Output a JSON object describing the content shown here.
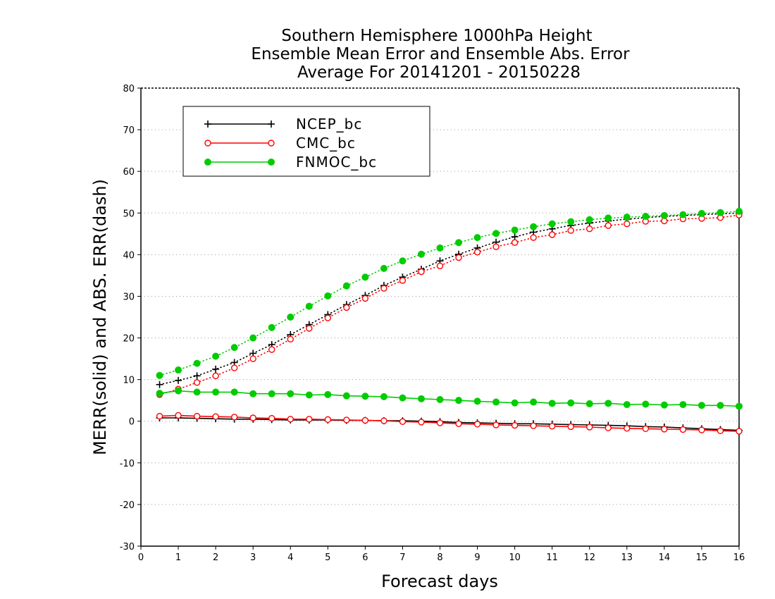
{
  "chart_data": {
    "type": "line",
    "title_lines": [
      "Southern Hemisphere 1000hPa Height",
      "Ensemble Mean Error and Ensemble Abs. Error",
      "Average For 20141201 - 20150228"
    ],
    "xlabel": "Forecast days",
    "ylabel": "MERR(solid) and ABS. ERR(dash)",
    "xlim": [
      0,
      16
    ],
    "ylim": [
      -30,
      80
    ],
    "x_ticks": [
      "0",
      "1",
      "2",
      "3",
      "4",
      "5",
      "6",
      "7",
      "8",
      "9",
      "10",
      "11",
      "12",
      "13",
      "14",
      "15",
      "16"
    ],
    "y_ticks": [
      "80",
      "70",
      "60",
      "50",
      "40",
      "30",
      "20",
      "10",
      "0",
      "-10",
      "-20",
      "-30"
    ],
    "grid": true,
    "legend_position": "top-left",
    "x": [
      0.5,
      1,
      1.5,
      2,
      2.5,
      3,
      3.5,
      4,
      4.5,
      5,
      5.5,
      6,
      6.5,
      7,
      7.5,
      8,
      8.5,
      9,
      9.5,
      10,
      10.5,
      11,
      11.5,
      12,
      12.5,
      13,
      13.5,
      14,
      14.5,
      15,
      15.5,
      16
    ],
    "series": [
      {
        "name": "NCEP_bc",
        "color": "#000000",
        "marker": "plus",
        "merr": [
          0.8,
          0.8,
          0.7,
          0.6,
          0.5,
          0.5,
          0.4,
          0.3,
          0.3,
          0.3,
          0.2,
          0.2,
          0.1,
          0.1,
          0.0,
          -0.1,
          -0.3,
          -0.4,
          -0.5,
          -0.6,
          -0.6,
          -0.7,
          -0.8,
          -0.9,
          -1.0,
          -1.1,
          -1.3,
          -1.4,
          -1.6,
          -1.8,
          -2.0,
          -2.2
        ],
        "abs_err": [
          8.8,
          9.8,
          10.9,
          12.5,
          14.1,
          16.3,
          18.4,
          20.8,
          23.2,
          25.6,
          28.0,
          30.2,
          32.6,
          34.6,
          36.5,
          38.5,
          40.1,
          41.6,
          43.0,
          44.3,
          45.4,
          46.2,
          47.0,
          47.6,
          48.1,
          48.5,
          48.9,
          49.2,
          49.4,
          49.6,
          49.8,
          50.0
        ]
      },
      {
        "name": "CMC_bc",
        "color": "#ff0000",
        "marker": "open-circle",
        "merr": [
          1.2,
          1.4,
          1.2,
          1.1,
          1.0,
          0.8,
          0.7,
          0.5,
          0.5,
          0.4,
          0.3,
          0.2,
          0.1,
          -0.1,
          -0.2,
          -0.4,
          -0.6,
          -0.7,
          -0.9,
          -1.0,
          -1.1,
          -1.2,
          -1.3,
          -1.4,
          -1.6,
          -1.7,
          -1.8,
          -1.9,
          -2.0,
          -2.1,
          -2.3,
          -2.4
        ],
        "abs_err": [
          6.4,
          7.7,
          9.3,
          10.9,
          12.8,
          15.0,
          17.2,
          19.7,
          22.3,
          24.8,
          27.3,
          29.5,
          31.9,
          33.8,
          35.9,
          37.3,
          39.3,
          40.6,
          41.9,
          42.9,
          44.1,
          44.8,
          45.8,
          46.2,
          47.0,
          47.4,
          48.0,
          48.1,
          48.6,
          48.7,
          48.9,
          49.5
        ]
      },
      {
        "name": "FNMOC_bc",
        "color": "#00cc00",
        "marker": "filled-circle",
        "merr": [
          6.7,
          7.3,
          7.0,
          7.0,
          7.0,
          6.6,
          6.6,
          6.6,
          6.3,
          6.4,
          6.1,
          6.0,
          5.9,
          5.6,
          5.4,
          5.2,
          5.0,
          4.8,
          4.6,
          4.4,
          4.6,
          4.3,
          4.4,
          4.2,
          4.3,
          4.0,
          4.1,
          3.9,
          4.0,
          3.8,
          3.8,
          3.6
        ],
        "abs_err": [
          11.0,
          12.3,
          13.9,
          15.6,
          17.7,
          20.0,
          22.5,
          25.0,
          27.6,
          30.1,
          32.5,
          34.6,
          36.7,
          38.5,
          40.1,
          41.6,
          42.9,
          44.1,
          45.1,
          45.9,
          46.7,
          47.4,
          47.9,
          48.4,
          48.8,
          49.0,
          49.2,
          49.4,
          49.6,
          49.9,
          50.1,
          50.4
        ]
      }
    ]
  }
}
